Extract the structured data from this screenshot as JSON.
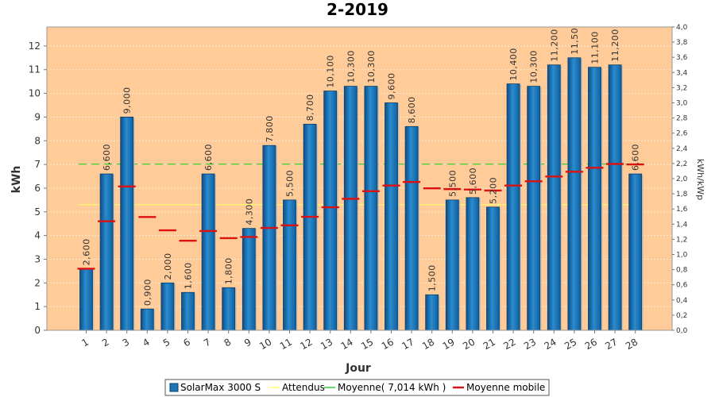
{
  "chart_data": {
    "type": "bar",
    "title": "2-2019",
    "xlabel": "Jour",
    "ylabel": "kWh",
    "y2label": "kWh/kWp",
    "ylim": [
      0,
      12.8
    ],
    "y2lim": [
      0,
      4.0
    ],
    "yticks": [
      "0",
      "1",
      "2",
      "3",
      "4",
      "5",
      "6",
      "7",
      "8",
      "9",
      "10",
      "11",
      "12"
    ],
    "y2ticks": [
      "0,0",
      "0,2",
      "0,4",
      "0,6",
      "0,8",
      "1,0",
      "1,2",
      "1,4",
      "1,6",
      "1,8",
      "2,0",
      "2,2",
      "2,4",
      "2,6",
      "2,8",
      "3,0",
      "3,2",
      "3,4",
      "3,6",
      "3,8",
      "4,0"
    ],
    "categories": [
      "1",
      "2",
      "3",
      "4",
      "5",
      "6",
      "7",
      "8",
      "9",
      "10",
      "11",
      "12",
      "13",
      "14",
      "15",
      "16",
      "17",
      "18",
      "19",
      "20",
      "21",
      "22",
      "23",
      "24",
      "25",
      "26",
      "27",
      "28"
    ],
    "series": [
      {
        "name": "SolarMax 3000 S",
        "values": [
          2.6,
          6.6,
          9.0,
          0.9,
          2.0,
          1.6,
          6.6,
          1.8,
          4.3,
          7.8,
          5.5,
          8.7,
          10.1,
          10.3,
          10.3,
          9.6,
          8.6,
          1.5,
          5.5,
          5.6,
          5.2,
          10.4,
          10.3,
          11.2,
          11.5,
          11.1,
          11.2,
          6.6
        ],
        "labels": [
          "2,600",
          "6,600",
          "9,000",
          "0,900",
          "2,000",
          "1,600",
          "6,600",
          "1,800",
          "4,300",
          "7,800",
          "5,500",
          "8,700",
          "10,100",
          "10,300",
          "10,300",
          "9,600",
          "8,600",
          "1,500",
          "5,500",
          "5,600",
          "5,200",
          "10,400",
          "10,300",
          "11,200",
          "11,50",
          "11,100",
          "11,200",
          "6,600"
        ],
        "color": "#1c75b8"
      },
      {
        "name": "Attendus",
        "value": 5.3,
        "color": "#ffff66"
      },
      {
        "name": "Moyenne( 7,014 kWh )",
        "value": 7.014,
        "color": "#22cc22"
      },
      {
        "name": "Moyenne mobile",
        "values": [
          2.6,
          4.6,
          6.07,
          4.78,
          4.22,
          3.78,
          4.19,
          3.89,
          3.94,
          4.32,
          4.43,
          4.79,
          5.19,
          5.55,
          5.87,
          6.11,
          6.26,
          5.99,
          5.96,
          5.94,
          5.9,
          6.11,
          6.29,
          6.49,
          6.69,
          6.86,
          7.02,
          7.0
        ],
        "color": "#dd1111"
      }
    ],
    "background": "#ffcc99",
    "legend_position": "bottom",
    "grid": true
  }
}
